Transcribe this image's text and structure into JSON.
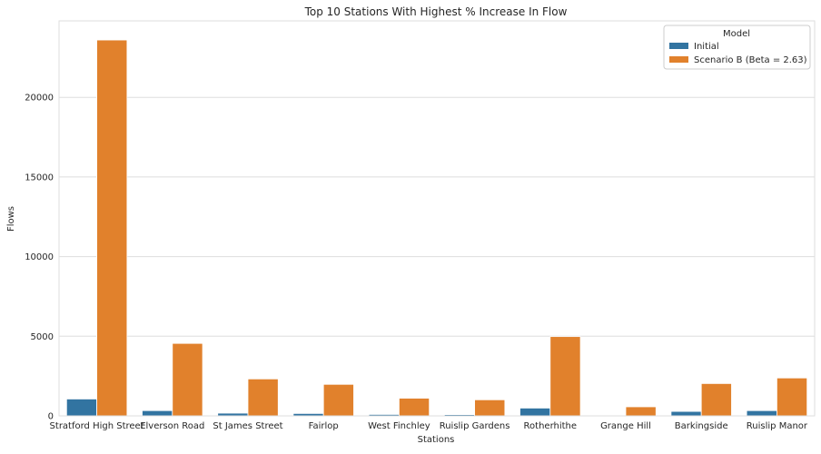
{
  "chart_data": {
    "type": "bar",
    "title": "Top 10 Stations With Highest % Increase In Flow",
    "xlabel": "Stations",
    "ylabel": "Flows",
    "ylim": [
      0,
      24800
    ],
    "yticks": [
      0,
      5000,
      10000,
      15000,
      20000
    ],
    "grid": true,
    "legend": {
      "title": "Model",
      "position": "top-right"
    },
    "categories": [
      "Stratford High Street",
      "Elverson Road",
      "St James Street",
      "Fairlop",
      "West Finchley",
      "Ruislip Gardens",
      "Rotherhithe",
      "Grange Hill",
      "Barkingside",
      "Ruislip Manor"
    ],
    "series": [
      {
        "name": "Initial",
        "color": "#3274a1",
        "values": [
          1060,
          330,
          170,
          150,
          90,
          80,
          490,
          20,
          280,
          330
        ]
      },
      {
        "name": "Scenario B (Beta = 2.63)",
        "color": "#e1812c",
        "values": [
          23600,
          4550,
          2320,
          1980,
          1110,
          1010,
          4980,
          570,
          2030,
          2380
        ]
      }
    ]
  }
}
